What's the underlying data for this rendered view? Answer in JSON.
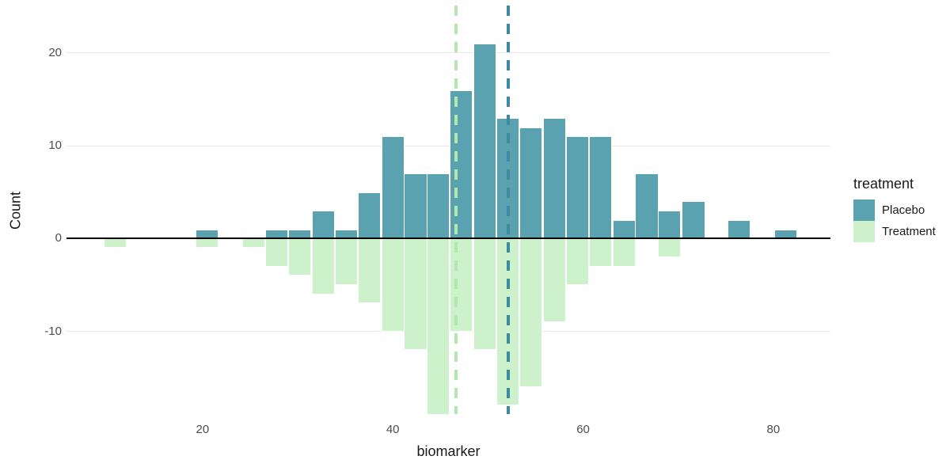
{
  "chart_data": {
    "type": "bar",
    "subtype": "mirrored-histogram",
    "title": "",
    "xlabel": "biomarker",
    "ylabel": "Count",
    "x_ticks": [
      20,
      40,
      60,
      80
    ],
    "y_ticks": [
      20,
      10,
      0,
      -10
    ],
    "x_domain": [
      5.7,
      86.0
    ],
    "y_domain": [
      -18.9,
      25.1
    ],
    "grid": "horizontal-only",
    "gridline_color": "#e8e8e8",
    "zero_line_color": "#000000",
    "tick_label_color": "#4d4d4d",
    "background": "#ffffff",
    "bin_width": 2.43,
    "bin_centers": [
      10.8,
      13.2,
      15.6,
      18.1,
      20.5,
      22.9,
      25.4,
      27.8,
      30.2,
      32.7,
      35.1,
      37.5,
      40.0,
      42.4,
      44.8,
      47.2,
      49.7,
      52.1,
      54.5,
      57.0,
      59.4,
      61.8,
      64.3,
      66.7,
      69.1,
      71.6,
      74.0,
      76.4,
      78.9,
      81.3
    ],
    "series": [
      {
        "name": "Placebo",
        "color": "#5ba2b1",
        "values": [
          0,
          0,
          0,
          0,
          1,
          0,
          0,
          1,
          1,
          3,
          1,
          5,
          11,
          7,
          7,
          16,
          21,
          13,
          12,
          13,
          11,
          11,
          2,
          7,
          3,
          4,
          0,
          2,
          0,
          1
        ],
        "mean_line": 52.1,
        "mean_line_color": "#3d8ba1"
      },
      {
        "name": "Treatment",
        "color": "#cdf2cb",
        "values": [
          -1,
          0,
          0,
          0,
          -1,
          0,
          -1,
          -3,
          -4,
          -6,
          -5,
          -7,
          -10,
          -12,
          -19,
          -10,
          -12,
          -18,
          -16,
          -9,
          -5,
          -3,
          -3,
          0,
          -2,
          0,
          0,
          0,
          0,
          0
        ],
        "mean_line": 46.6,
        "mean_line_color": "#b2e8ae"
      }
    ],
    "legend": {
      "title": "treatment",
      "position": "right",
      "entries": [
        "Placebo",
        "Treatment"
      ]
    }
  }
}
